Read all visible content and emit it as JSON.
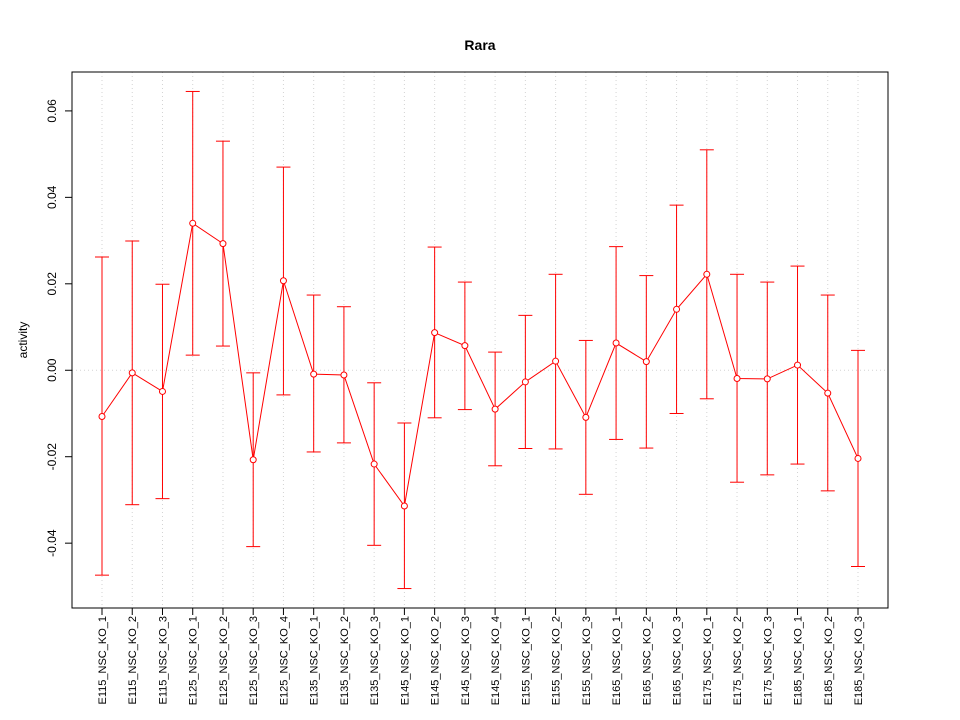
{
  "chart_data": {
    "type": "line",
    "title": "Rara",
    "xlabel": "",
    "ylabel": "activity",
    "ylim": [
      -0.055,
      0.069
    ],
    "yticks": [
      -0.04,
      -0.02,
      0.0,
      0.02,
      0.04,
      0.06
    ],
    "ytick_labels": [
      "-0.04",
      "-0.02",
      "0.00",
      "0.02",
      "0.04",
      "0.06"
    ],
    "grid": true,
    "categories": [
      "E115_NSC_KO_1",
      "E115_NSC_KO_2",
      "E115_NSC_KO_3",
      "E125_NSC_KO_1",
      "E125_NSC_KO_2",
      "E125_NSC_KO_3",
      "E125_NSC_KO_4",
      "E135_NSC_KO_1",
      "E135_NSC_KO_2",
      "E135_NSC_KO_3",
      "E145_NSC_KO_1",
      "E145_NSC_KO_2",
      "E145_NSC_KO_3",
      "E145_NSC_KO_4",
      "E155_NSC_KO_1",
      "E155_NSC_KO_2",
      "E155_NSC_KO_3",
      "E165_NSC_KO_1",
      "E165_NSC_KO_2",
      "E165_NSC_KO_3",
      "E175_NSC_KO_1",
      "E175_NSC_KO_2",
      "E175_NSC_KO_3",
      "E185_NSC_KO_1",
      "E185_NSC_KO_2",
      "E185_NSC_KO_3"
    ],
    "series": [
      {
        "color": "#ff0000",
        "values": [
          -0.0107,
          -0.0006,
          -0.0049,
          0.034,
          0.0293,
          -0.0207,
          0.0207,
          -0.0009,
          -0.0011,
          -0.0217,
          -0.0314,
          0.0087,
          0.0057,
          -0.009,
          -0.0027,
          0.0021,
          -0.0109,
          0.0063,
          0.002,
          0.0141,
          0.0222,
          -0.0019,
          -0.002,
          0.0012,
          -0.0053,
          -0.0204
        ],
        "upper": [
          0.0262,
          0.0299,
          0.0199,
          0.0645,
          0.053,
          -0.0006,
          0.047,
          0.0174,
          0.0147,
          -0.0029,
          -0.0122,
          0.0285,
          0.0204,
          0.0042,
          0.0127,
          0.0222,
          0.0069,
          0.0286,
          0.0219,
          0.0382,
          0.051,
          0.0222,
          0.0204,
          0.0241,
          0.0174,
          0.0046
        ],
        "lower": [
          -0.0474,
          -0.0311,
          -0.0297,
          0.0035,
          0.0056,
          -0.0408,
          -0.0057,
          -0.0189,
          -0.0168,
          -0.0405,
          -0.0505,
          -0.011,
          -0.0091,
          -0.0221,
          -0.0181,
          -0.0182,
          -0.0287,
          -0.016,
          -0.018,
          -0.01,
          -0.0066,
          -0.0259,
          -0.0242,
          -0.0217,
          -0.0279,
          -0.0454
        ]
      }
    ]
  }
}
